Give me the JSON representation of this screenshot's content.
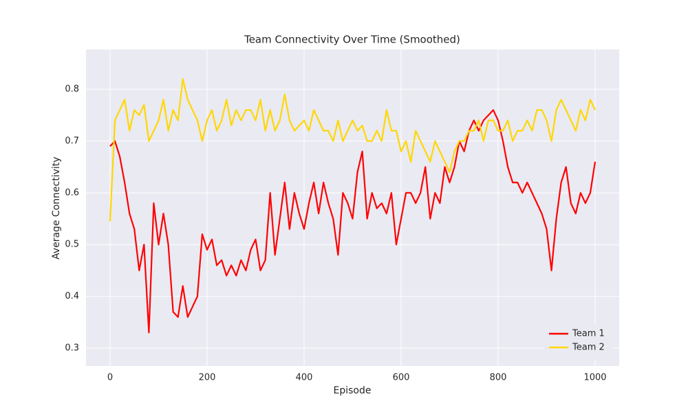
{
  "chart_data": {
    "type": "line",
    "title": "Team Connectivity Over Time (Smoothed)",
    "x_label": "Episode",
    "y_label": "Average Connectivity",
    "x": [
      0,
      10,
      20,
      30,
      40,
      50,
      60,
      70,
      80,
      90,
      100,
      110,
      120,
      130,
      140,
      150,
      160,
      170,
      180,
      190,
      200,
      210,
      220,
      230,
      240,
      250,
      260,
      270,
      280,
      290,
      300,
      310,
      320,
      330,
      340,
      350,
      360,
      370,
      380,
      390,
      400,
      410,
      420,
      430,
      440,
      450,
      460,
      470,
      480,
      490,
      500,
      510,
      520,
      530,
      540,
      550,
      560,
      570,
      580,
      590,
      600,
      610,
      620,
      630,
      640,
      650,
      660,
      670,
      680,
      690,
      700,
      710,
      720,
      730,
      740,
      750,
      760,
      770,
      780,
      790,
      800,
      810,
      820,
      830,
      840,
      850,
      860,
      870,
      880,
      890,
      900,
      910,
      920,
      930,
      940,
      950,
      960,
      970,
      980,
      990,
      1000
    ],
    "series": [
      {
        "name": "Team 1",
        "color": "#ff0000",
        "values": [
          0.69,
          0.7,
          0.67,
          0.62,
          0.56,
          0.53,
          0.45,
          0.5,
          0.33,
          0.58,
          0.5,
          0.56,
          0.5,
          0.37,
          0.36,
          0.42,
          0.36,
          0.38,
          0.4,
          0.52,
          0.49,
          0.51,
          0.46,
          0.47,
          0.44,
          0.46,
          0.44,
          0.47,
          0.45,
          0.49,
          0.51,
          0.45,
          0.47,
          0.6,
          0.48,
          0.55,
          0.62,
          0.53,
          0.6,
          0.56,
          0.53,
          0.58,
          0.62,
          0.56,
          0.62,
          0.58,
          0.55,
          0.48,
          0.6,
          0.58,
          0.55,
          0.64,
          0.68,
          0.55,
          0.6,
          0.57,
          0.58,
          0.56,
          0.6,
          0.5,
          0.55,
          0.6,
          0.6,
          0.58,
          0.6,
          0.65,
          0.55,
          0.6,
          0.58,
          0.65,
          0.62,
          0.65,
          0.7,
          0.68,
          0.72,
          0.74,
          0.72,
          0.74,
          0.75,
          0.76,
          0.74,
          0.7,
          0.65,
          0.62,
          0.62,
          0.6,
          0.62,
          0.6,
          0.58,
          0.56,
          0.53,
          0.45,
          0.55,
          0.62,
          0.65,
          0.58,
          0.56,
          0.6,
          0.58,
          0.6,
          0.66
        ]
      },
      {
        "name": "Team 2",
        "color": "#ffd700",
        "values": [
          0.545,
          0.74,
          0.76,
          0.78,
          0.72,
          0.76,
          0.75,
          0.77,
          0.7,
          0.72,
          0.74,
          0.78,
          0.72,
          0.76,
          0.74,
          0.82,
          0.78,
          0.76,
          0.74,
          0.7,
          0.74,
          0.76,
          0.72,
          0.74,
          0.78,
          0.73,
          0.76,
          0.74,
          0.76,
          0.76,
          0.74,
          0.78,
          0.72,
          0.76,
          0.72,
          0.74,
          0.79,
          0.74,
          0.72,
          0.73,
          0.74,
          0.72,
          0.76,
          0.74,
          0.72,
          0.72,
          0.7,
          0.74,
          0.7,
          0.72,
          0.74,
          0.72,
          0.73,
          0.7,
          0.7,
          0.72,
          0.7,
          0.76,
          0.72,
          0.72,
          0.68,
          0.7,
          0.66,
          0.72,
          0.7,
          0.68,
          0.66,
          0.7,
          0.68,
          0.66,
          0.64,
          0.68,
          0.7,
          0.7,
          0.72,
          0.72,
          0.74,
          0.7,
          0.74,
          0.74,
          0.72,
          0.72,
          0.74,
          0.7,
          0.72,
          0.72,
          0.74,
          0.72,
          0.76,
          0.76,
          0.74,
          0.7,
          0.76,
          0.78,
          0.76,
          0.74,
          0.72,
          0.76,
          0.74,
          0.78,
          0.76
        ]
      }
    ],
    "xlim": [
      -49.65,
      1049.65
    ],
    "ylim": [
      0.2655,
      0.877
    ],
    "xticks": [
      0,
      200,
      400,
      600,
      800,
      1000
    ],
    "yticks": [
      0.3,
      0.4,
      0.5,
      0.6,
      0.7,
      0.8
    ],
    "grid": true,
    "legend": "lower right"
  }
}
